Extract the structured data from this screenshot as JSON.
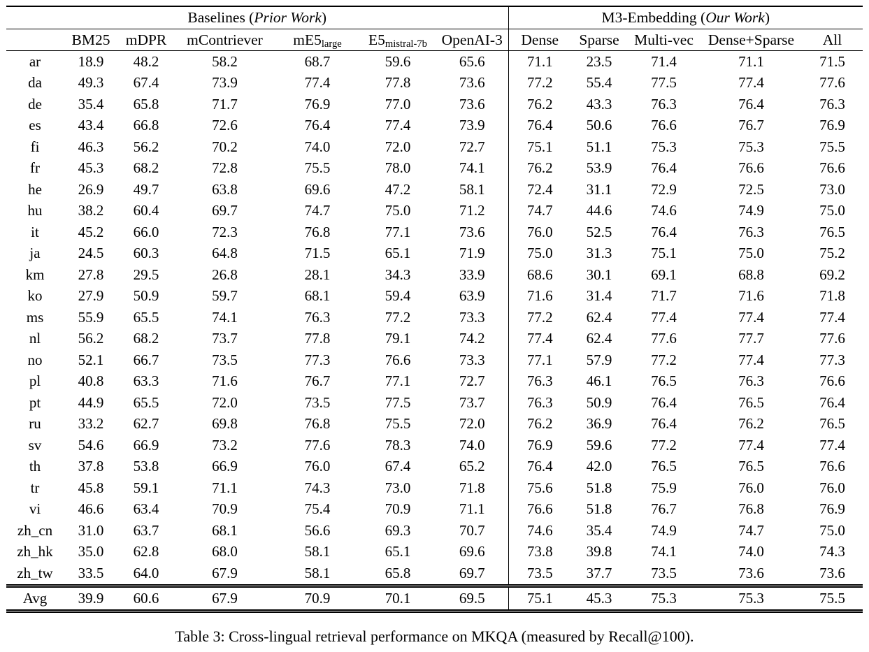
{
  "caption": "Table 3: Cross-lingual retrieval performance on MKQA (measured by Recall@100).",
  "table": {
    "groups": [
      {
        "prefix": "Baselines (",
        "italic": "Prior Work",
        "suffix": ")"
      },
      {
        "prefix": "M3-Embedding (",
        "italic": "Our Work",
        "suffix": ")"
      }
    ],
    "columns": [
      {
        "key": "bm25",
        "main": "BM25",
        "sub": ""
      },
      {
        "key": "mdpr",
        "main": "mDPR",
        "sub": ""
      },
      {
        "key": "mcontriever",
        "main": "mContriever",
        "sub": ""
      },
      {
        "key": "me5-large",
        "main": "mE5",
        "sub": "large"
      },
      {
        "key": "e5-mistral-7b",
        "main": "E5",
        "sub": "mistral-7b"
      },
      {
        "key": "openai-3",
        "main": "OpenAI-3",
        "sub": ""
      },
      {
        "key": "dense",
        "main": "Dense",
        "sub": ""
      },
      {
        "key": "sparse",
        "main": "Sparse",
        "sub": ""
      },
      {
        "key": "multi-vec",
        "main": "Multi-vec",
        "sub": ""
      },
      {
        "key": "dense-sparse",
        "main": "Dense+Sparse",
        "sub": ""
      },
      {
        "key": "all",
        "main": "All",
        "sub": ""
      }
    ],
    "rows": [
      {
        "lang": "ar",
        "values": [
          "18.9",
          "48.2",
          "58.2",
          "68.7",
          "59.6",
          "65.6",
          "71.1",
          "23.5",
          "71.4",
          "71.1",
          "71.5"
        ],
        "bold": [
          10
        ]
      },
      {
        "lang": "da",
        "values": [
          "49.3",
          "67.4",
          "73.9",
          "77.4",
          "77.8",
          "73.6",
          "77.2",
          "55.4",
          "77.5",
          "77.4",
          "77.6"
        ],
        "bold": [
          4
        ]
      },
      {
        "lang": "de",
        "values": [
          "35.4",
          "65.8",
          "71.7",
          "76.9",
          "77.0",
          "73.6",
          "76.2",
          "43.3",
          "76.3",
          "76.4",
          "76.3"
        ],
        "bold": [
          4
        ]
      },
      {
        "lang": "es",
        "values": [
          "43.4",
          "66.8",
          "72.6",
          "76.4",
          "77.4",
          "73.9",
          "76.4",
          "50.6",
          "76.6",
          "76.7",
          "76.9"
        ],
        "bold": [
          4
        ]
      },
      {
        "lang": "fi",
        "values": [
          "46.3",
          "56.2",
          "70.2",
          "74.0",
          "72.0",
          "72.7",
          "75.1",
          "51.1",
          "75.3",
          "75.3",
          "75.5"
        ],
        "bold": [
          10
        ]
      },
      {
        "lang": "fr",
        "values": [
          "45.3",
          "68.2",
          "72.8",
          "75.5",
          "78.0",
          "74.1",
          "76.2",
          "53.9",
          "76.4",
          "76.6",
          "76.6"
        ],
        "bold": [
          4
        ]
      },
      {
        "lang": "he",
        "values": [
          "26.9",
          "49.7",
          "63.8",
          "69.6",
          "47.2",
          "58.1",
          "72.4",
          "31.1",
          "72.9",
          "72.5",
          "73.0"
        ],
        "bold": [
          10
        ]
      },
      {
        "lang": "hu",
        "values": [
          "38.2",
          "60.4",
          "69.7",
          "74.7",
          "75.0",
          "71.2",
          "74.7",
          "44.6",
          "74.6",
          "74.9",
          "75.0"
        ],
        "bold": [
          4,
          10
        ]
      },
      {
        "lang": "it",
        "values": [
          "45.2",
          "66.0",
          "72.3",
          "76.8",
          "77.1",
          "73.6",
          "76.0",
          "52.5",
          "76.4",
          "76.3",
          "76.5"
        ],
        "bold": [
          4
        ]
      },
      {
        "lang": "ja",
        "values": [
          "24.5",
          "60.3",
          "64.8",
          "71.5",
          "65.1",
          "71.9",
          "75.0",
          "31.3",
          "75.1",
          "75.0",
          "75.2"
        ],
        "bold": [
          10
        ]
      },
      {
        "lang": "km",
        "values": [
          "27.8",
          "29.5",
          "26.8",
          "28.1",
          "34.3",
          "33.9",
          "68.6",
          "30.1",
          "69.1",
          "68.8",
          "69.2"
        ],
        "bold": [
          10
        ]
      },
      {
        "lang": "ko",
        "values": [
          "27.9",
          "50.9",
          "59.7",
          "68.1",
          "59.4",
          "63.9",
          "71.6",
          "31.4",
          "71.7",
          "71.6",
          "71.8"
        ],
        "bold": [
          10
        ]
      },
      {
        "lang": "ms",
        "values": [
          "55.9",
          "65.5",
          "74.1",
          "76.3",
          "77.2",
          "73.3",
          "77.2",
          "62.4",
          "77.4",
          "77.4",
          "77.4"
        ],
        "bold": [
          8,
          9,
          10
        ]
      },
      {
        "lang": "nl",
        "values": [
          "56.2",
          "68.2",
          "73.7",
          "77.8",
          "79.1",
          "74.2",
          "77.4",
          "62.4",
          "77.6",
          "77.7",
          "77.6"
        ],
        "bold": [
          4
        ]
      },
      {
        "lang": "no",
        "values": [
          "52.1",
          "66.7",
          "73.5",
          "77.3",
          "76.6",
          "73.3",
          "77.1",
          "57.9",
          "77.2",
          "77.4",
          "77.3"
        ],
        "bold": [
          9
        ]
      },
      {
        "lang": "pl",
        "values": [
          "40.8",
          "63.3",
          "71.6",
          "76.7",
          "77.1",
          "72.7",
          "76.3",
          "46.1",
          "76.5",
          "76.3",
          "76.6"
        ],
        "bold": [
          4
        ]
      },
      {
        "lang": "pt",
        "values": [
          "44.9",
          "65.5",
          "72.0",
          "73.5",
          "77.5",
          "73.7",
          "76.3",
          "50.9",
          "76.4",
          "76.5",
          "76.4"
        ],
        "bold": [
          4
        ]
      },
      {
        "lang": "ru",
        "values": [
          "33.2",
          "62.7",
          "69.8",
          "76.8",
          "75.5",
          "72.0",
          "76.2",
          "36.9",
          "76.4",
          "76.2",
          "76.5"
        ],
        "bold": [
          3
        ]
      },
      {
        "lang": "sv",
        "values": [
          "54.6",
          "66.9",
          "73.2",
          "77.6",
          "78.3",
          "74.0",
          "76.9",
          "59.6",
          "77.2",
          "77.4",
          "77.4"
        ],
        "bold": [
          4
        ]
      },
      {
        "lang": "th",
        "values": [
          "37.8",
          "53.8",
          "66.9",
          "76.0",
          "67.4",
          "65.2",
          "76.4",
          "42.0",
          "76.5",
          "76.5",
          "76.6"
        ],
        "bold": [
          10
        ]
      },
      {
        "lang": "tr",
        "values": [
          "45.8",
          "59.1",
          "71.1",
          "74.3",
          "73.0",
          "71.8",
          "75.6",
          "51.8",
          "75.9",
          "76.0",
          "76.0"
        ],
        "bold": [
          9,
          10
        ]
      },
      {
        "lang": "vi",
        "values": [
          "46.6",
          "63.4",
          "70.9",
          "75.4",
          "70.9",
          "71.1",
          "76.6",
          "51.8",
          "76.7",
          "76.8",
          "76.9"
        ],
        "bold": [
          10
        ]
      },
      {
        "lang": "zh_cn",
        "values": [
          "31.0",
          "63.7",
          "68.1",
          "56.6",
          "69.3",
          "70.7",
          "74.6",
          "35.4",
          "74.9",
          "74.7",
          "75.0"
        ],
        "bold": [
          10
        ]
      },
      {
        "lang": "zh_hk",
        "values": [
          "35.0",
          "62.8",
          "68.0",
          "58.1",
          "65.1",
          "69.6",
          "73.8",
          "39.8",
          "74.1",
          "74.0",
          "74.3"
        ],
        "bold": [
          10
        ]
      },
      {
        "lang": "zh_tw",
        "values": [
          "33.5",
          "64.0",
          "67.9",
          "58.1",
          "65.8",
          "69.7",
          "73.5",
          "37.7",
          "73.5",
          "73.6",
          "73.6"
        ],
        "bold": [
          9,
          10
        ]
      },
      {
        "lang": "Avg",
        "values": [
          "39.9",
          "60.6",
          "67.9",
          "70.9",
          "70.1",
          "69.5",
          "75.1",
          "45.3",
          "75.3",
          "75.3",
          "75.5"
        ],
        "bold": [
          10
        ],
        "avg": true
      }
    ]
  }
}
